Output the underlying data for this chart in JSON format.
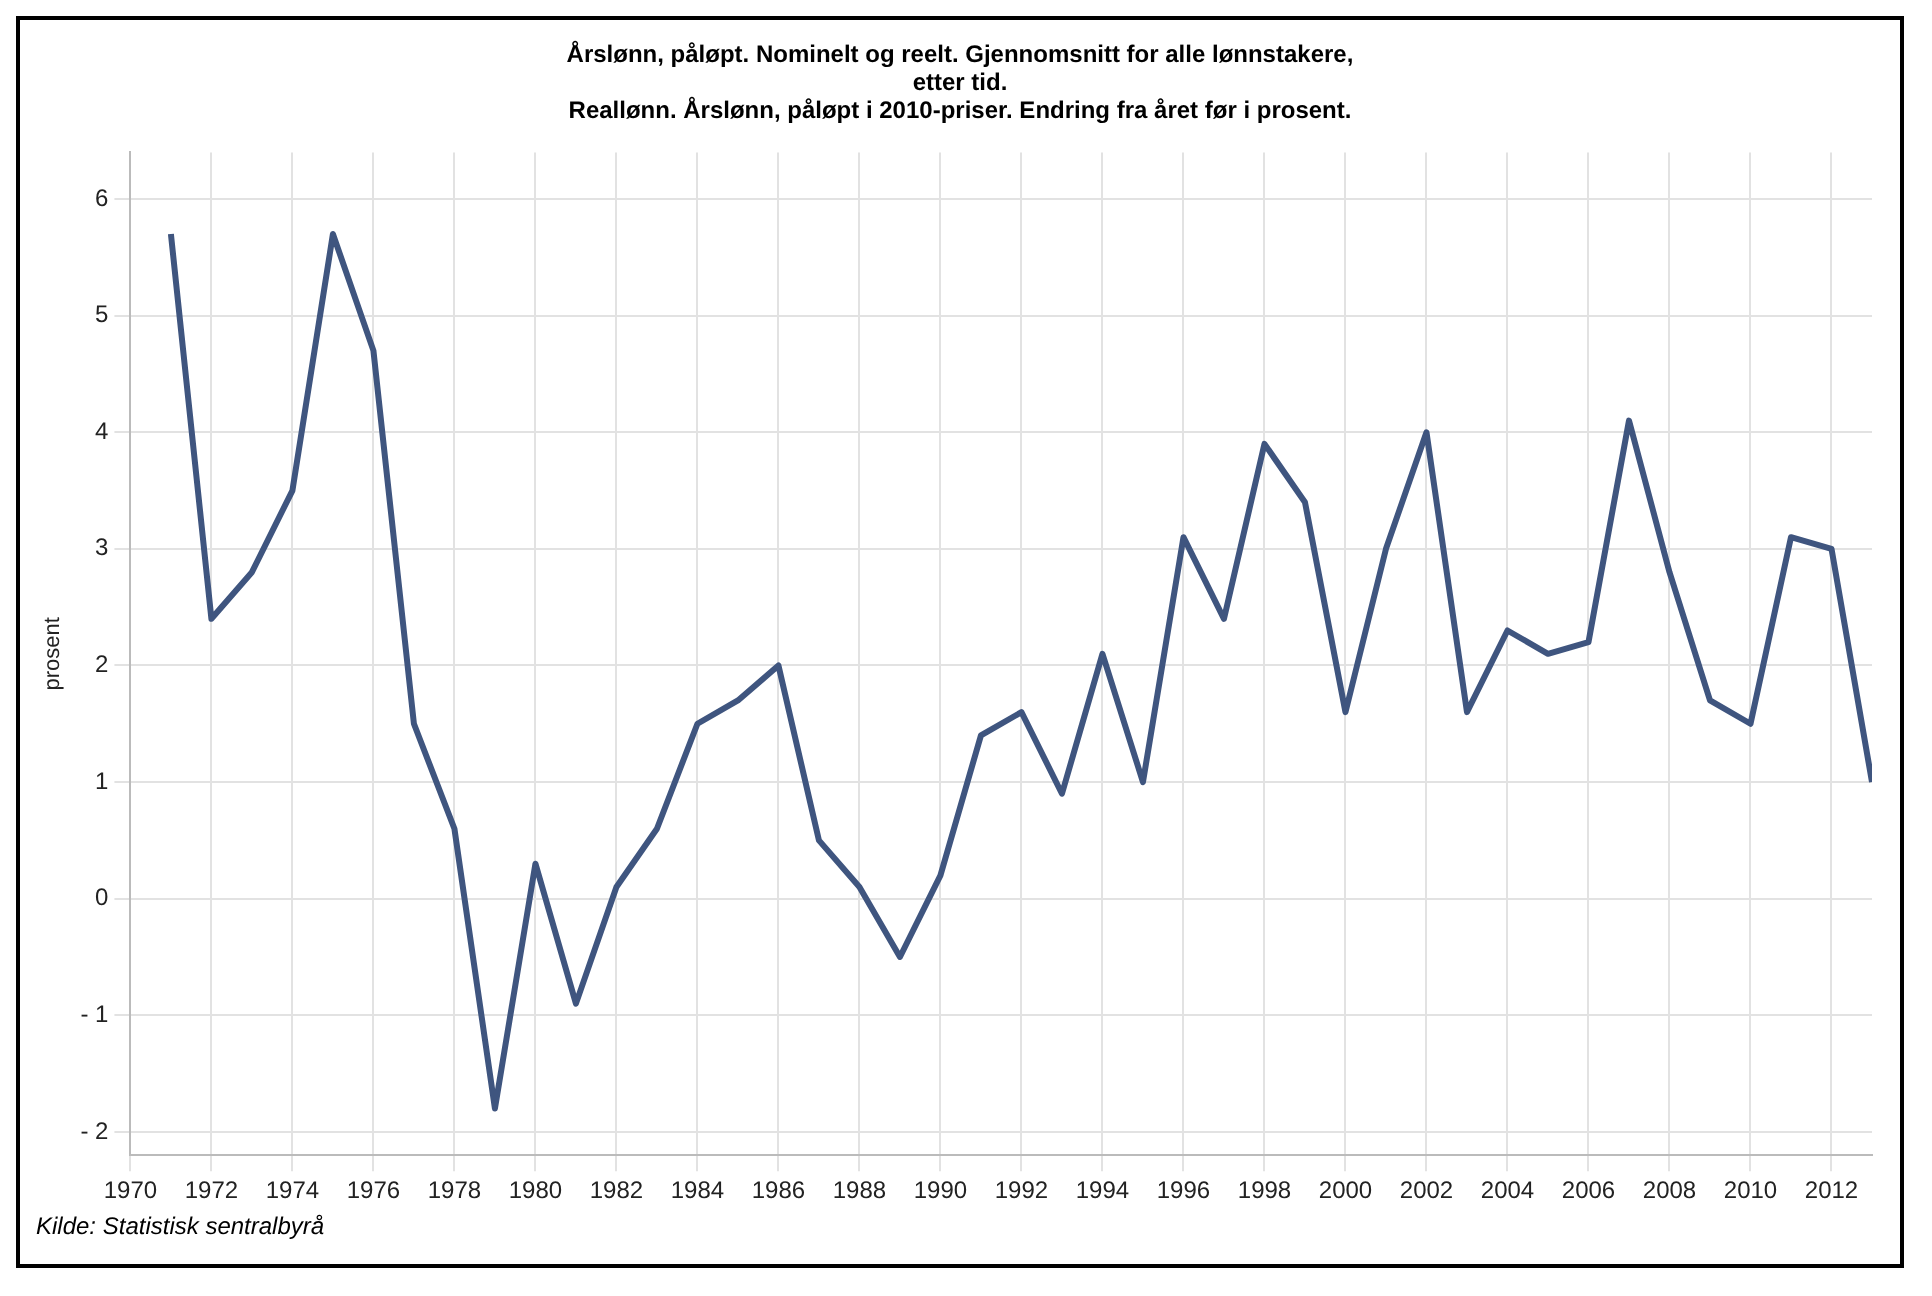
{
  "chart_data": {
    "type": "line",
    "title": "Årslønn, påløpt. Nominelt og reelt. Gjennomsnitt for alle lønnstakere, etter tid.",
    "subtitle": "Reallønn. Årslønn, påløpt i 2010-priser. Endring fra året før i prosent.",
    "ylabel": "prosent",
    "annotations": [
      "Kilde: Statistisk sentralbyrå"
    ],
    "x": [
      1971,
      1972,
      1973,
      1974,
      1975,
      1976,
      1977,
      1978,
      1979,
      1980,
      1981,
      1982,
      1983,
      1984,
      1985,
      1986,
      1987,
      1988,
      1989,
      1990,
      1991,
      1992,
      1993,
      1994,
      1995,
      1996,
      1997,
      1998,
      1999,
      2000,
      2001,
      2002,
      2003,
      2004,
      2005,
      2006,
      2007,
      2008,
      2009,
      2010,
      2011,
      2012,
      2013
    ],
    "series": [
      {
        "color": "#3f557f",
        "values": [
          5.7,
          2.4,
          2.8,
          3.5,
          5.7,
          4.7,
          1.5,
          0.6,
          -1.8,
          0.3,
          -0.9,
          0.1,
          0.6,
          1.5,
          1.7,
          2.0,
          0.5,
          0.1,
          -0.5,
          0.2,
          1.4,
          1.6,
          0.9,
          2.1,
          1.0,
          3.1,
          2.4,
          3.9,
          3.4,
          1.6,
          3.0,
          4.0,
          1.6,
          2.3,
          2.1,
          2.2,
          4.1,
          2.8,
          1.7,
          1.5,
          3.1,
          3.0,
          1.0
        ]
      }
    ],
    "xlim": [
      1970,
      2013
    ],
    "xticks": [
      1970,
      1972,
      1974,
      1976,
      1978,
      1980,
      1982,
      1984,
      1986,
      1988,
      1990,
      1992,
      1994,
      1996,
      1998,
      2000,
      2002,
      2004,
      2006,
      2008,
      2010,
      2012
    ],
    "ylim": [
      -2.2,
      6.4
    ],
    "yticks": [
      {
        "value": -2,
        "label": "- 2"
      },
      {
        "value": -1,
        "label": "- 1"
      },
      0,
      1,
      2,
      3,
      4,
      5,
      6
    ],
    "grid": true,
    "legend": false,
    "marker": "none",
    "line_style": "solid"
  }
}
